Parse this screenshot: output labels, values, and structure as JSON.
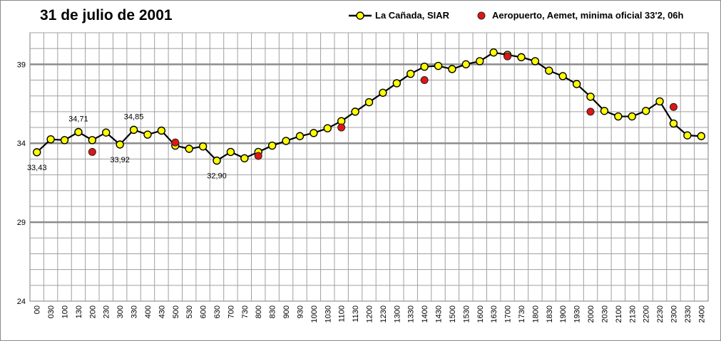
{
  "chart_data": {
    "type": "line",
    "title": "31 de julio de 2001",
    "xlabel": "",
    "ylabel": "",
    "ylim": [
      24,
      41
    ],
    "yticks": [
      24,
      29,
      34,
      39
    ],
    "categories": [
      "00",
      "030",
      "100",
      "130",
      "200",
      "230",
      "300",
      "330",
      "400",
      "430",
      "500",
      "530",
      "600",
      "630",
      "700",
      "730",
      "800",
      "830",
      "900",
      "930",
      "1000",
      "1030",
      "1100",
      "1130",
      "1200",
      "1230",
      "1300",
      "1330",
      "1400",
      "1430",
      "1500",
      "1530",
      "1600",
      "1630",
      "1700",
      "1730",
      "1800",
      "1830",
      "1900",
      "1930",
      "2000",
      "2030",
      "2100",
      "2130",
      "2200",
      "2230",
      "2300",
      "2330",
      "2400"
    ],
    "series": [
      {
        "name": "La Cañada, SIAR",
        "kind": "line-marker",
        "color": "#000000",
        "marker_fill": "#ffff00",
        "values": [
          33.43,
          34.25,
          34.2,
          34.71,
          34.2,
          34.68,
          33.92,
          34.85,
          34.55,
          34.8,
          33.85,
          33.65,
          33.8,
          32.9,
          33.45,
          33.05,
          33.45,
          33.85,
          34.15,
          34.45,
          34.65,
          34.95,
          35.4,
          36.0,
          36.6,
          37.2,
          37.8,
          38.4,
          38.85,
          38.9,
          38.7,
          39.0,
          39.2,
          39.75,
          39.6,
          39.45,
          39.2,
          38.6,
          38.25,
          37.75,
          36.95,
          36.05,
          35.7,
          35.7,
          36.05,
          36.65,
          35.25,
          34.5,
          34.45
        ]
      },
      {
        "name": "Aeropuerto, Aemet, minima oficial 33'2, 06h",
        "kind": "marker",
        "marker_fill": "#e31414",
        "points": [
          {
            "x": "200",
            "y": 33.45
          },
          {
            "x": "500",
            "y": 34.05
          },
          {
            "x": "800",
            "y": 33.2
          },
          {
            "x": "1100",
            "y": 35.0
          },
          {
            "x": "1400",
            "y": 38.0
          },
          {
            "x": "1700",
            "y": 39.5
          },
          {
            "x": "2000",
            "y": 36.0
          },
          {
            "x": "2300",
            "y": 36.3
          }
        ]
      }
    ],
    "data_labels": [
      {
        "x": "00",
        "text": "33,43",
        "position": "below"
      },
      {
        "x": "130",
        "text": "34,71",
        "position": "above"
      },
      {
        "x": "300",
        "text": "33,92",
        "position": "below"
      },
      {
        "x": "330",
        "text": "34,85",
        "position": "above"
      },
      {
        "x": "630",
        "text": "32,90",
        "position": "below"
      }
    ],
    "grid": true,
    "legend_position": "top-right"
  },
  "colors": {
    "grid_minor": "#a0a0a0",
    "grid_major": "#8c8c8c",
    "axis": "#7f7f7f"
  }
}
